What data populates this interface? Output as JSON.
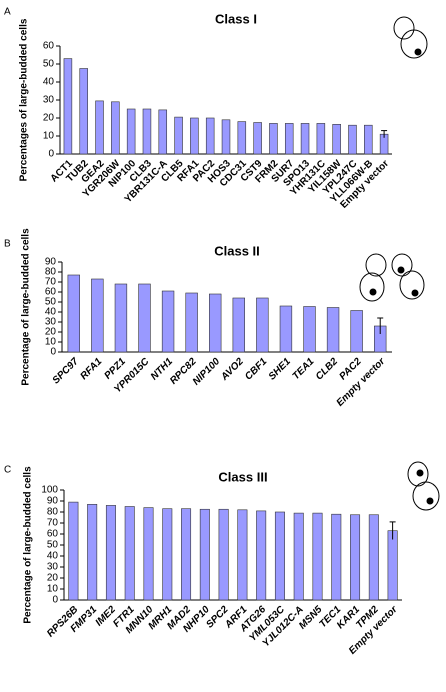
{
  "chart_data": [
    {
      "type": "bar",
      "label": "A",
      "title": "Class I",
      "ylabel": "Percentages of large-budded cells",
      "categories": [
        "ACT1",
        "TUB2",
        "GEA2",
        "YGR206W",
        "NIP100",
        "CLB3",
        "YBR131C-A",
        "CLB5",
        "RFA1",
        "PAC2",
        "HOS3",
        "CDC31",
        "CST9",
        "FRM2",
        "SUR7",
        "SPO13",
        "YHR131C",
        "YIL158W",
        "YPL247C",
        "YLL066W-B",
        "Empty vector"
      ],
      "values": [
        53,
        47.5,
        29.5,
        29,
        25,
        25,
        24.5,
        20.5,
        20,
        20,
        19,
        18,
        17.5,
        17,
        17,
        17,
        17,
        16.5,
        16,
        16,
        11
      ],
      "errors": [
        null,
        null,
        null,
        null,
        null,
        null,
        null,
        null,
        null,
        null,
        null,
        null,
        null,
        null,
        null,
        null,
        null,
        null,
        null,
        null,
        2
      ],
      "color": "#9999ff",
      "italic": false,
      "ylim": [
        0,
        60
      ],
      "yticks": [
        0,
        10,
        20,
        30,
        40,
        50,
        60
      ]
    },
    {
      "type": "bar",
      "label": "B",
      "title": "Class II",
      "ylabel": "Percentage of large-budded cells",
      "categories": [
        "SPC97",
        "RFA1",
        "PPZ1",
        "YPR015C",
        "NTH1",
        "RPC82",
        "NIP100",
        "AVO2",
        "CBF1",
        "SHE1",
        "TEA1",
        "CLB2",
        "PAC2",
        "Empty vector"
      ],
      "values": [
        77,
        73,
        68,
        68,
        61,
        59,
        58,
        54,
        54,
        46,
        45.5,
        44.5,
        41.5,
        26
      ],
      "errors": [
        null,
        null,
        null,
        null,
        null,
        null,
        null,
        null,
        null,
        null,
        null,
        null,
        null,
        8
      ],
      "color": "#9999ff",
      "italic": true,
      "ylim": [
        0,
        90
      ],
      "yticks": [
        0,
        10,
        20,
        30,
        40,
        50,
        60,
        70,
        80,
        90
      ]
    },
    {
      "type": "bar",
      "label": "C",
      "title": "Class III",
      "ylabel": "Percentage of large-budded cells",
      "categories": [
        "RPS26B",
        "FMP31",
        "IME2",
        "FTR1",
        "MNN10",
        "MRH1",
        "MAD2",
        "NHP10",
        "SPC2",
        "ARF1",
        "ATG26",
        "YML053C",
        "YJL012C-A",
        "MSN5",
        "TEC1",
        "KAR1",
        "TPM2",
        "Empty vector"
      ],
      "values": [
        89,
        87,
        86,
        85,
        84,
        83,
        83,
        82.5,
        82.5,
        82,
        81,
        80,
        79,
        79,
        78,
        77.5,
        77.5,
        63
      ],
      "errors": [
        null,
        null,
        null,
        null,
        null,
        null,
        null,
        null,
        null,
        null,
        null,
        null,
        null,
        null,
        null,
        null,
        null,
        8
      ],
      "color": "#9999ff",
      "italic": true,
      "ylim": [
        0,
        100
      ],
      "yticks": [
        0,
        10,
        20,
        30,
        40,
        50,
        60,
        70,
        80,
        90,
        100
      ]
    }
  ]
}
